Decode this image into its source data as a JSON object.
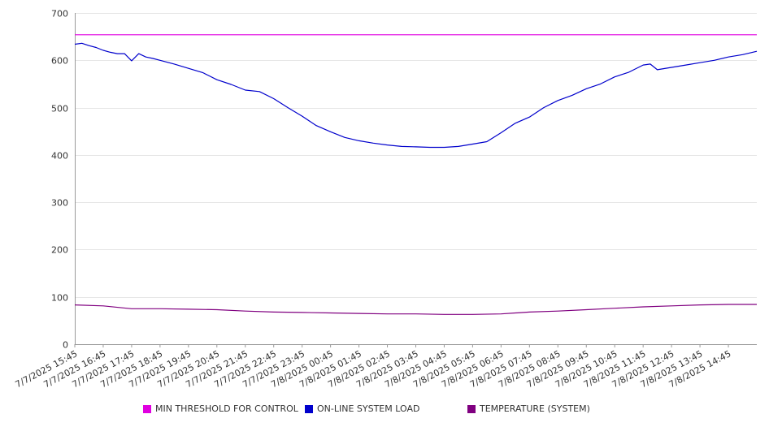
{
  "chart_data": {
    "type": "line",
    "title": "",
    "xlabel": "",
    "ylabel": "",
    "ylim": [
      0,
      700
    ],
    "yticks": [
      0,
      100,
      200,
      300,
      400,
      500,
      600,
      700
    ],
    "grid": true,
    "legend_position": "bottom",
    "x_tick_labels": [
      "7/7/2025 15:45",
      "7/7/2025 16:45",
      "7/7/2025 17:45",
      "7/7/2025 18:45",
      "7/7/2025 19:45",
      "7/7/2025 20:45",
      "7/7/2025 21:45",
      "7/7/2025 22:45",
      "7/7/2025 23:45",
      "7/8/2025 00:45",
      "7/8/2025 01:45",
      "7/8/2025 02:45",
      "7/8/2025 03:45",
      "7/8/2025 04:45",
      "7/8/2025 05:45",
      "7/8/2025 06:45",
      "7/8/2025 07:45",
      "7/8/2025 08:45",
      "7/8/2025 09:45",
      "7/8/2025 10:45",
      "7/8/2025 11:45",
      "7/8/2025 12:45",
      "7/8/2025 13:45",
      "7/8/2025 14:45"
    ],
    "x_range": [
      "7/7/2025 15:45",
      "7/8/2025 15:45"
    ],
    "series": [
      {
        "name": "MIN THRESHOLD FOR CONTROL",
        "color": "#e000e0",
        "x": [
          "7/7/2025 15:45",
          "7/8/2025 15:45"
        ],
        "values": [
          654,
          654
        ]
      },
      {
        "name": "ON-LINE SYSTEM LOAD",
        "color": "#0000cc",
        "x": [
          "7/7/2025 15:45",
          "7/7/2025 16:00",
          "7/7/2025 16:15",
          "7/7/2025 16:30",
          "7/7/2025 16:45",
          "7/7/2025 17:00",
          "7/7/2025 17:15",
          "7/7/2025 17:30",
          "7/7/2025 17:45",
          "7/7/2025 18:00",
          "7/7/2025 18:15",
          "7/7/2025 18:30",
          "7/7/2025 18:45",
          "7/7/2025 19:15",
          "7/7/2025 19:45",
          "7/7/2025 20:15",
          "7/7/2025 20:45",
          "7/7/2025 21:15",
          "7/7/2025 21:45",
          "7/7/2025 22:15",
          "7/7/2025 22:45",
          "7/7/2025 23:15",
          "7/7/2025 23:45",
          "7/8/2025 00:15",
          "7/8/2025 00:45",
          "7/8/2025 01:15",
          "7/8/2025 01:45",
          "7/8/2025 02:15",
          "7/8/2025 02:45",
          "7/8/2025 03:15",
          "7/8/2025 03:45",
          "7/8/2025 04:15",
          "7/8/2025 04:45",
          "7/8/2025 05:15",
          "7/8/2025 05:45",
          "7/8/2025 06:15",
          "7/8/2025 06:45",
          "7/8/2025 07:15",
          "7/8/2025 07:45",
          "7/8/2025 08:15",
          "7/8/2025 08:45",
          "7/8/2025 09:15",
          "7/8/2025 09:45",
          "7/8/2025 10:15",
          "7/8/2025 10:45",
          "7/8/2025 11:15",
          "7/8/2025 11:45",
          "7/8/2025 12:00",
          "7/8/2025 12:15",
          "7/8/2025 12:45",
          "7/8/2025 13:15",
          "7/8/2025 13:45",
          "7/8/2025 14:15",
          "7/8/2025 14:45",
          "7/8/2025 15:15",
          "7/8/2025 15:45"
        ],
        "values": [
          634,
          636,
          631,
          627,
          621,
          617,
          614,
          614,
          599,
          614,
          607,
          604,
          600,
          592,
          583,
          574,
          559,
          549,
          537,
          534,
          519,
          500,
          482,
          462,
          449,
          437,
          430,
          425,
          421,
          418,
          417,
          416,
          416,
          418,
          423,
          428,
          447,
          467,
          480,
          500,
          515,
          526,
          540,
          550,
          565,
          575,
          590,
          592,
          580,
          585,
          590,
          595,
          600,
          607,
          612,
          619
        ]
      },
      {
        "name": "TEMPERATURE (SYSTEM)",
        "color": "#800080",
        "x": [
          "7/7/2025 15:45",
          "7/7/2025 16:45",
          "7/7/2025 17:45",
          "7/7/2025 18:45",
          "7/7/2025 19:45",
          "7/7/2025 20:45",
          "7/7/2025 21:45",
          "7/7/2025 22:45",
          "7/7/2025 23:45",
          "7/8/2025 00:45",
          "7/8/2025 01:45",
          "7/8/2025 02:45",
          "7/8/2025 03:45",
          "7/8/2025 04:45",
          "7/8/2025 05:45",
          "7/8/2025 06:45",
          "7/8/2025 07:45",
          "7/8/2025 08:45",
          "7/8/2025 09:45",
          "7/8/2025 10:45",
          "7/8/2025 11:45",
          "7/8/2025 12:45",
          "7/8/2025 13:45",
          "7/8/2025 14:45",
          "7/8/2025 15:45"
        ],
        "values": [
          83,
          81,
          75,
          75,
          74,
          73,
          70,
          68,
          67,
          66,
          65,
          64,
          64,
          63,
          63,
          64,
          68,
          70,
          73,
          76,
          79,
          81,
          83,
          84,
          84
        ]
      }
    ]
  }
}
